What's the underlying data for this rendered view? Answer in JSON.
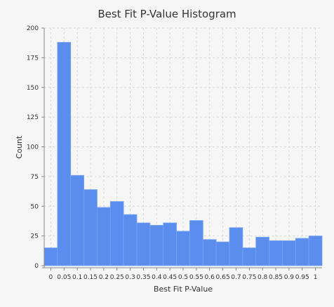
{
  "chart_data": {
    "type": "bar",
    "title": "Best Fit P-Value Histogram",
    "xlabel": "Best Fit P-Value",
    "ylabel": "Count",
    "ylim": [
      0,
      200
    ],
    "xlim": [
      -0.025,
      1.025
    ],
    "bin_width": 0.05,
    "bin_starts": [
      -0.025,
      0.025,
      0.075,
      0.125,
      0.175,
      0.225,
      0.275,
      0.325,
      0.375,
      0.425,
      0.475,
      0.525,
      0.575,
      0.625,
      0.675,
      0.725,
      0.775,
      0.825,
      0.875,
      0.925,
      0.975
    ],
    "values": [
      15,
      188,
      76,
      64,
      49,
      54,
      43,
      36,
      34,
      36,
      29,
      38,
      22,
      20,
      32,
      15,
      24,
      21,
      21,
      23,
      25
    ],
    "x_ticks": [
      0,
      0.05,
      0.1,
      0.15,
      0.2,
      0.25,
      0.3,
      0.35,
      0.4,
      0.45,
      0.5,
      0.55,
      0.6,
      0.65,
      0.7,
      0.75,
      0.8,
      0.85,
      0.9,
      0.95,
      1
    ],
    "x_tick_labels": [
      "0",
      "0.05",
      "0.1",
      "0.15",
      "0.2",
      "0.25",
      "0.3",
      "0.35",
      "0.4",
      "0.45",
      "0.5",
      "0.55",
      "0.6",
      "0.65",
      "0.7",
      "0.75",
      "0.8",
      "0.85",
      "0.9",
      "0.95",
      "1"
    ],
    "y_ticks": [
      0,
      25,
      50,
      75,
      100,
      125,
      150,
      175,
      200
    ],
    "y_tick_labels": [
      "0",
      "25",
      "50",
      "75",
      "100",
      "125",
      "150",
      "175",
      "200"
    ],
    "grid": true,
    "legend": "none",
    "colors": {
      "bar_fill": "#5b8def",
      "bar_stroke": "#7aa6f5",
      "grid": "#d8d8d8",
      "axis": "#888888",
      "background": "#f6f6f6"
    }
  }
}
